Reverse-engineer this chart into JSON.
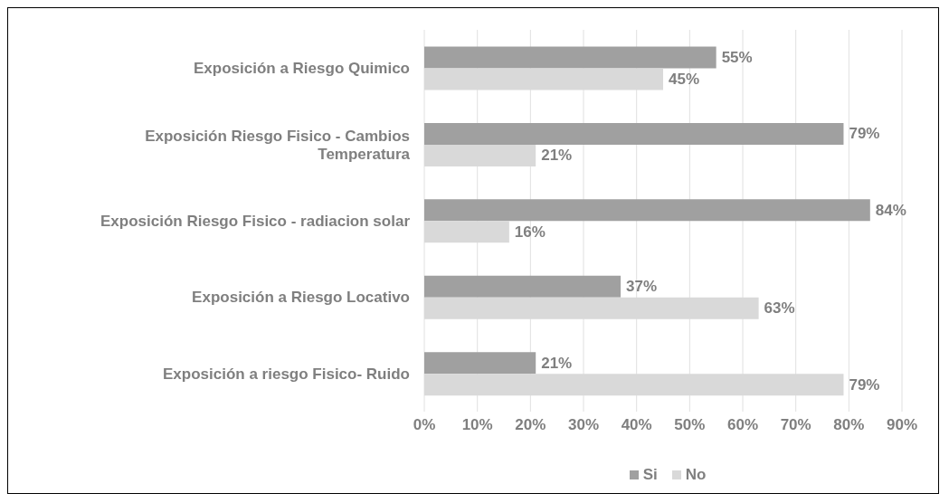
{
  "chart_data": {
    "type": "bar",
    "orientation": "horizontal",
    "categories": [
      "Exposición a Riesgo Quimico",
      "Exposición Riesgo Fisico - Cambios Temperatura",
      "Exposición Riesgo Fisico - radiacion solar",
      "Exposición a Riesgo Locativo",
      "Exposición a riesgo Fisico- Ruido"
    ],
    "series": [
      {
        "name": "Si",
        "color": "#a0a0a0",
        "values": [
          55,
          79,
          84,
          37,
          21
        ],
        "value_labels": [
          "55%",
          "79%",
          "84%",
          "37%",
          "21%"
        ]
      },
      {
        "name": "No",
        "color": "#d9d9d9",
        "values": [
          45,
          21,
          16,
          63,
          79
        ],
        "value_labels": [
          "45%",
          "21%",
          "16%",
          "63%",
          "79%"
        ]
      }
    ],
    "xlim": [
      0,
      90
    ],
    "xticks": [
      {
        "value": 0,
        "label": "0%"
      },
      {
        "value": 10,
        "label": "10%"
      },
      {
        "value": 20,
        "label": "20%"
      },
      {
        "value": 30,
        "label": "30%"
      },
      {
        "value": 40,
        "label": "40%"
      },
      {
        "value": 50,
        "label": "50%"
      },
      {
        "value": 60,
        "label": "60%"
      },
      {
        "value": 70,
        "label": "70%"
      },
      {
        "value": 80,
        "label": "80%"
      },
      {
        "value": 90,
        "label": "90%"
      }
    ],
    "grid": "x",
    "legend": "bottom"
  }
}
